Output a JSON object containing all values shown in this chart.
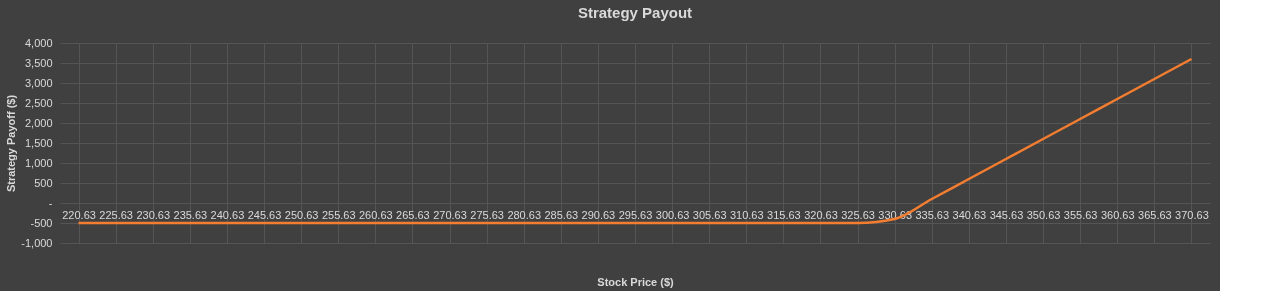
{
  "chart_data": {
    "type": "line",
    "title": "Strategy Payout",
    "xlabel": "Stock Price ($)",
    "ylabel": "Strategy Payoff ($)",
    "categories": [
      "220.63",
      "225.63",
      "230.63",
      "235.63",
      "240.63",
      "245.63",
      "250.63",
      "255.63",
      "260.63",
      "265.63",
      "270.63",
      "275.63",
      "280.63",
      "285.63",
      "290.63",
      "295.63",
      "300.63",
      "305.63",
      "310.63",
      "315.63",
      "320.63",
      "325.63",
      "330.63",
      "335.63",
      "340.63",
      "345.63",
      "350.63",
      "355.63",
      "360.63",
      "365.63",
      "370.63"
    ],
    "series": [
      {
        "color": "#f47d30",
        "values": [
          -500,
          -500,
          -500,
          -500,
          -500,
          -500,
          -500,
          -500,
          -500,
          -500,
          -500,
          -500,
          -500,
          -500,
          -500,
          -500,
          -500,
          -500,
          -500,
          -500,
          -500,
          -500,
          -400,
          100,
          600,
          1100,
          1600,
          2100,
          2600,
          3100,
          3600
        ]
      }
    ],
    "ylim": [
      -1000,
      4000
    ],
    "yticks": [
      {
        "value": -1000,
        "label": "-1,000"
      },
      {
        "value": -500,
        "label": "-500"
      },
      {
        "value": 0,
        "label": "-"
      },
      {
        "value": 500,
        "label": "500"
      },
      {
        "value": 1000,
        "label": "1,000"
      },
      {
        "value": 1500,
        "label": "1,500"
      },
      {
        "value": 2000,
        "label": "2,000"
      },
      {
        "value": 2500,
        "label": "2,500"
      },
      {
        "value": 3000,
        "label": "3,000"
      },
      {
        "value": 3500,
        "label": "3,500"
      },
      {
        "value": 4000,
        "label": "4,000"
      }
    ],
    "grid": true,
    "marker": "none",
    "line_style": "solid"
  }
}
